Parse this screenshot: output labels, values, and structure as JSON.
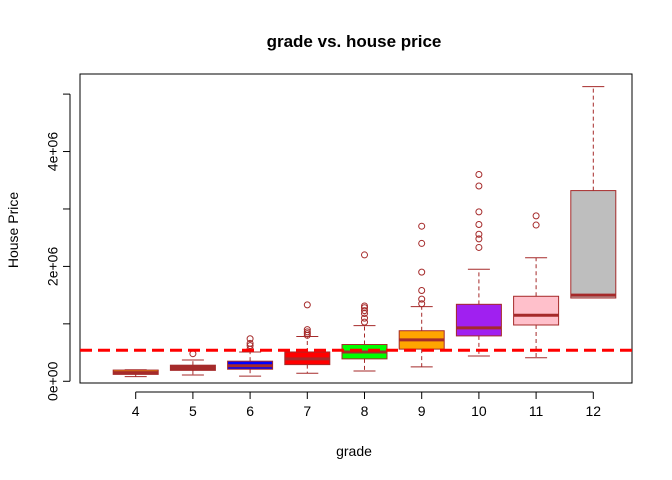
{
  "chart_data": {
    "type": "box",
    "title": "grade vs. house price",
    "xlabel": "grade",
    "ylabel": "House Price",
    "categories": [
      "4",
      "5",
      "6",
      "7",
      "8",
      "9",
      "10",
      "11",
      "12"
    ],
    "ylim": [
      -30000,
      5350000
    ],
    "y_ticks": [
      {
        "value": 0,
        "label": "0e+00"
      },
      {
        "value": 2000000,
        "label": "2e+06"
      },
      {
        "value": 4000000,
        "label": "4e+06"
      }
    ],
    "y_minor_ticks": [
      1000000,
      3000000,
      5000000
    ],
    "reference_line": {
      "value": 540000,
      "color": "#ff0000",
      "style": "dashed"
    },
    "border_color": "#a52a2a",
    "boxes": [
      {
        "category": "4",
        "fill": "#ffa500",
        "min": 80000,
        "q1": 120000,
        "median": 150000,
        "q3": 195000,
        "max": 200000,
        "outliers": []
      },
      {
        "category": "5",
        "fill": "#a52a2a",
        "min": 110000,
        "q1": 190000,
        "median": 230000,
        "q3": 280000,
        "max": 370000,
        "outliers": [
          480000
        ]
      },
      {
        "category": "6",
        "fill": "#0000ff",
        "min": 90000,
        "q1": 210000,
        "median": 270000,
        "q3": 350000,
        "max": 510000,
        "outliers": [
          560000,
          620000,
          660000,
          740000
        ]
      },
      {
        "category": "7",
        "fill": "#ff0000",
        "min": 140000,
        "q1": 290000,
        "median": 390000,
        "q3": 510000,
        "max": 780000,
        "outliers": [
          800000,
          830000,
          860000,
          900000,
          1330000
        ]
      },
      {
        "category": "8",
        "fill": "#00ff00",
        "min": 180000,
        "q1": 390000,
        "median": 510000,
        "q3": 640000,
        "max": 970000,
        "outliers": [
          1030000,
          1100000,
          1180000,
          1230000,
          1280000,
          1310000,
          2200000
        ]
      },
      {
        "category": "9",
        "fill": "#ffa500",
        "min": 250000,
        "q1": 560000,
        "median": 720000,
        "q3": 880000,
        "max": 1300000,
        "outliers": [
          1350000,
          1430000,
          1580000,
          1900000,
          2400000,
          2700000
        ]
      },
      {
        "category": "10",
        "fill": "#a020f0",
        "min": 440000,
        "q1": 790000,
        "median": 930000,
        "q3": 1340000,
        "max": 1950000,
        "outliers": [
          2330000,
          2480000,
          2560000,
          2730000,
          2950000,
          3400000,
          3600000
        ]
      },
      {
        "category": "11",
        "fill": "#ffc0cb",
        "min": 410000,
        "q1": 980000,
        "median": 1150000,
        "q3": 1480000,
        "max": 2150000,
        "outliers": [
          2720000,
          2880000
        ]
      },
      {
        "category": "12",
        "fill": "#bebebe",
        "min": 1450000,
        "q1": 1450000,
        "median": 1500000,
        "q3": 3320000,
        "max": 5130000,
        "outliers": []
      }
    ]
  }
}
